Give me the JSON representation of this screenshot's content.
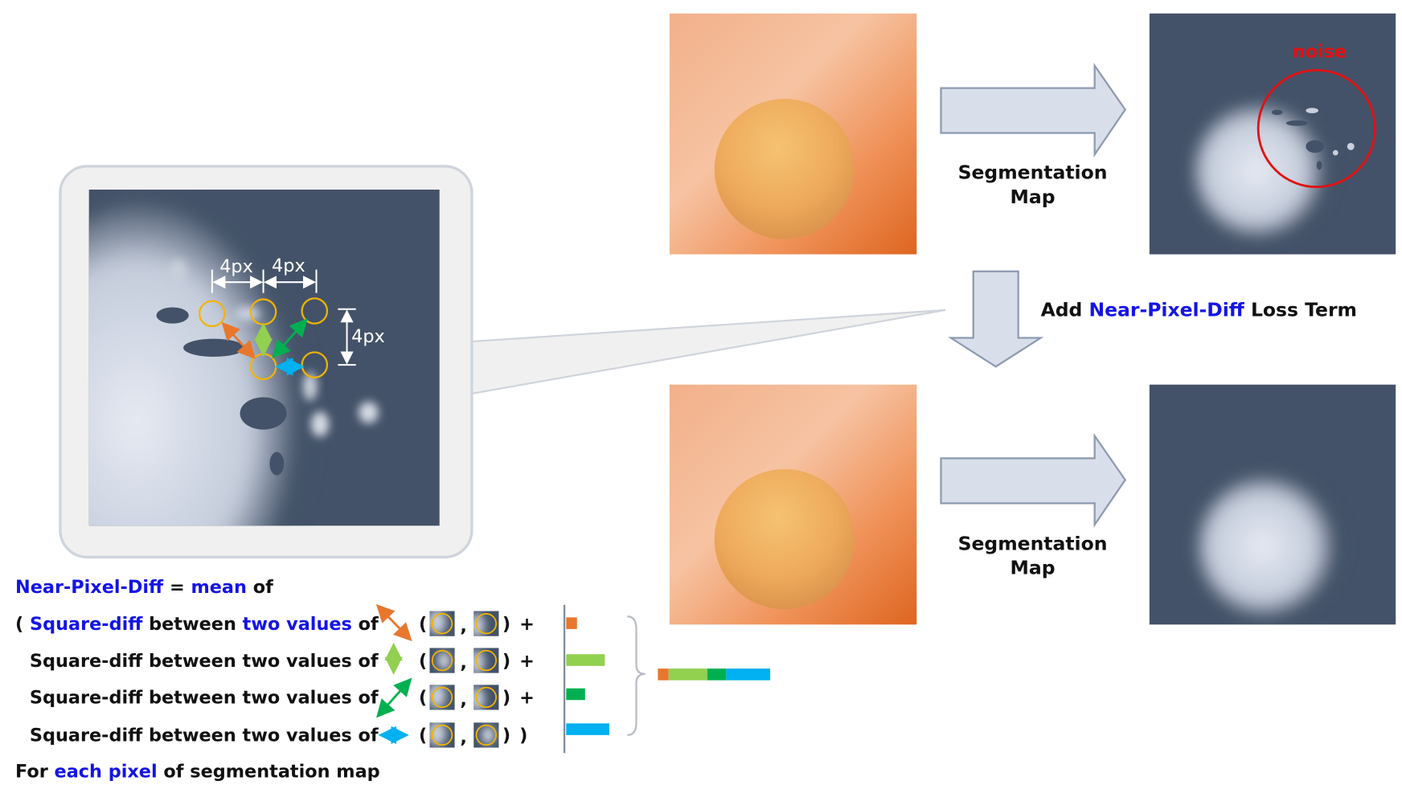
{
  "diagram": {
    "pipelines": [
      {
        "label_lines": [
          "Segmentation",
          "Map"
        ]
      },
      {
        "label_lines": [
          "Segmentation",
          "Map"
        ]
      }
    ],
    "noise_label": "noise",
    "loss_step": [
      {
        "text": "Add "
      },
      {
        "text": "Near-Pixel-Diff",
        "color": "#1414e6"
      },
      {
        "text": " Loss Term"
      }
    ],
    "zoom": {
      "spacing_labels": [
        "4px",
        "4px",
        "4px"
      ]
    },
    "formula": {
      "title": [
        {
          "text": "Near-Pixel-Diff",
          "color": "#1414e6"
        },
        {
          "text": " = "
        },
        {
          "text": "mean",
          "color": "#1414e6"
        },
        {
          "text": " of"
        }
      ],
      "rows": [
        {
          "segments": [
            {
              "text": "( "
            },
            {
              "text": "Square-diff",
              "color": "#1414e6"
            },
            {
              "text": " between "
            },
            {
              "text": "two values",
              "color": "#1414e6"
            },
            {
              "text": " of"
            }
          ],
          "open": "(",
          "sep": ",",
          "close": ")",
          "end": "+"
        },
        {
          "segments": [
            {
              "text": "Square-diff between two values of"
            }
          ],
          "open": "(",
          "sep": ",",
          "close": ")",
          "end": "+"
        },
        {
          "segments": [
            {
              "text": "Square-diff between two values of"
            }
          ],
          "open": "(",
          "sep": ",",
          "close": ")",
          "end": "+"
        },
        {
          "segments": [
            {
              "text": "Square-diff between two values of"
            }
          ],
          "open": "(",
          "sep": ",",
          "close": ")",
          "end": ")"
        }
      ],
      "footer": [
        {
          "text": "For "
        },
        {
          "text": "each pixel",
          "color": "#1414e6"
        },
        {
          "text": " of segmentation map"
        }
      ]
    }
  }
}
